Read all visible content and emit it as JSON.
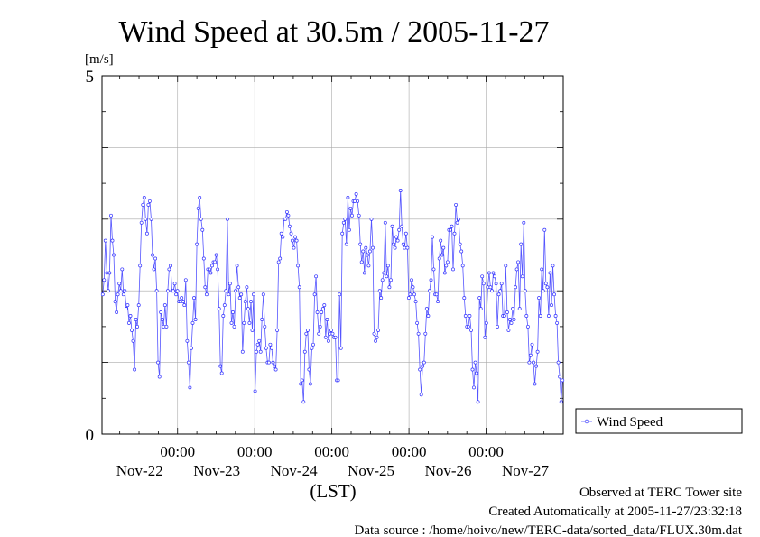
{
  "chart_data": {
    "type": "line",
    "title": "Wind Speed at 30.5m / 2005-11-27",
    "ylabel": "[m/s]",
    "xlabel": "(LST)",
    "ylim": [
      0,
      5
    ],
    "yticks": [
      0,
      5
    ],
    "x_range_days": [
      -0.98,
      5.0
    ],
    "x_ticks": [
      {
        "day": 0,
        "time": "00:00",
        "date": "Nov-22"
      },
      {
        "day": 1,
        "time": "00:00",
        "date": "Nov-23"
      },
      {
        "day": 2,
        "time": "00:00",
        "date": "Nov-24"
      },
      {
        "day": 3,
        "time": "00:00",
        "date": "Nov-25"
      },
      {
        "day": 4,
        "time": "00:00",
        "date": "Nov-26"
      }
    ],
    "x_labels_only": [
      {
        "day": 5,
        "date": "Nov-27"
      }
    ],
    "grid": true,
    "legend_position": "right",
    "series": [
      {
        "name": "Wind Speed",
        "color": "#3333ff",
        "values": [
          1.95,
          2.15,
          2.7,
          2.25,
          2.0,
          2.25,
          3.05,
          2.7,
          2.5,
          1.85,
          1.7,
          1.95,
          2.1,
          2.0,
          2.3,
          1.95,
          2.0,
          1.75,
          1.8,
          1.55,
          1.65,
          1.45,
          1.3,
          0.9,
          1.6,
          1.5,
          1.8,
          2.35,
          2.95,
          3.2,
          3.3,
          3.0,
          2.8,
          3.2,
          3.25,
          3.0,
          2.5,
          2.3,
          2.45,
          2.0,
          1.0,
          0.8,
          1.7,
          1.6,
          1.5,
          1.8,
          1.5,
          2.0,
          2.3,
          2.35,
          2.0,
          2.0,
          2.1,
          1.95,
          2.0,
          1.85,
          1.85,
          1.9,
          1.85,
          1.8,
          2.15,
          1.3,
          1.0,
          0.65,
          1.2,
          1.55,
          1.9,
          1.6,
          2.65,
          3.15,
          3.3,
          3.0,
          2.85,
          2.45,
          2.05,
          1.95,
          2.3,
          2.3,
          2.25,
          2.35,
          2.4,
          2.4,
          2.5,
          2.3,
          1.75,
          0.95,
          0.85,
          1.65,
          1.8,
          2.0,
          3.0,
          1.95,
          2.1,
          1.55,
          1.7,
          1.5,
          2.0,
          2.35,
          2.05,
          1.9,
          1.95,
          1.15,
          1.55,
          1.85,
          2.05,
          1.75,
          1.55,
          1.85,
          1.45,
          1.95,
          0.6,
          1.15,
          1.25,
          1.3,
          1.15,
          1.6,
          1.95,
          1.5,
          1.2,
          1.0,
          1.0,
          1.25,
          1.2,
          1.0,
          0.95,
          0.9,
          1.45,
          2.4,
          2.45,
          2.8,
          2.75,
          3.0,
          3.0,
          3.1,
          3.05,
          2.9,
          2.8,
          2.7,
          2.6,
          2.75,
          2.7,
          2.35,
          2.05,
          0.7,
          0.75,
          0.45,
          1.15,
          1.4,
          1.45,
          0.9,
          0.7,
          1.2,
          1.25,
          1.95,
          2.2,
          1.7,
          1.4,
          1.5,
          1.7,
          1.75,
          1.8,
          1.35,
          1.6,
          1.3,
          1.4,
          1.45,
          1.4,
          1.35,
          1.35,
          0.75,
          0.75,
          1.95,
          1.2,
          2.8,
          2.95,
          3.0,
          2.65,
          3.3,
          2.85,
          3.15,
          3.05,
          3.25,
          3.25,
          3.35,
          3.25,
          3.05,
          2.65,
          2.4,
          2.55,
          2.25,
          2.6,
          2.5,
          2.35,
          2.55,
          3.0,
          2.6,
          1.4,
          1.3,
          1.35,
          1.45,
          2.0,
          1.9,
          2.15,
          2.25,
          2.95,
          2.2,
          2.35,
          2.05,
          2.15,
          2.9,
          2.65,
          2.6,
          2.75,
          2.7,
          2.85,
          3.4,
          2.9,
          2.65,
          2.6,
          2.8,
          2.6,
          1.9,
          1.95,
          2.15,
          2.05,
          1.95,
          1.85,
          1.55,
          1.4,
          0.9,
          0.55,
          0.95,
          1.0,
          1.4,
          1.75,
          1.65,
          2.0,
          2.15,
          2.75,
          2.3,
          1.95,
          1.95,
          1.85,
          2.45,
          2.7,
          2.5,
          2.6,
          2.25,
          2.35,
          2.4,
          2.85,
          2.85,
          2.9,
          2.3,
          2.8,
          3.2,
          2.95,
          3.0,
          2.65,
          2.55,
          2.35,
          1.9,
          1.65,
          1.5,
          1.5,
          1.65,
          1.45,
          0.9,
          0.65,
          1.0,
          0.85,
          0.45,
          1.9,
          1.75,
          2.2,
          2.1,
          1.35,
          1.55,
          2.05,
          2.25,
          2.05,
          2.0,
          2.25,
          2.2,
          2.1,
          1.5,
          1.95,
          2.0,
          2.1,
          1.65,
          1.65,
          2.35,
          1.7,
          1.45,
          1.6,
          1.55,
          1.75,
          1.6,
          2.05,
          2.3,
          2.4,
          1.75,
          2.65,
          2.2,
          2.95,
          2.0,
          1.65,
          1.5,
          1.0,
          1.1,
          1.25,
          1.0,
          0.7,
          0.95,
          1.15,
          1.9,
          1.65,
          2.3,
          2.0,
          2.85,
          2.1,
          2.05,
          1.65,
          2.25,
          1.8,
          2.35,
          1.95,
          1.65,
          1.55,
          1.0,
          0.8,
          0.45,
          0.75
        ]
      }
    ]
  },
  "footer": {
    "observed": "Observed at TERC Tower site",
    "created": "Created Automatically at 2005-11-27/23:32:18",
    "source": "Data source : /home/hoivo/new/TERC-data/sorted_data/FLUX.30m.dat"
  }
}
